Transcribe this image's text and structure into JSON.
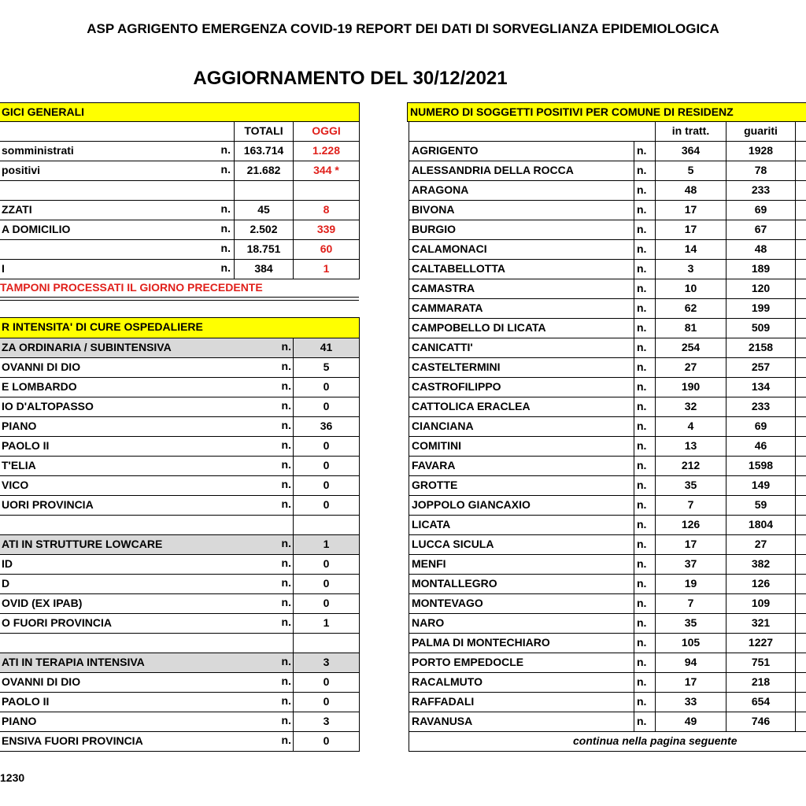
{
  "header": {
    "title": "ASP AGRIGENTO   EMERGENZA COVID-19   REPORT DEI DATI DI SORVEGLIANZA EPIDEMIOLOGICA",
    "subtitle": "AGGIORNAMENTO DEL 30/12/2021"
  },
  "general": {
    "title": "GICI GENERALI",
    "columns": [
      "TOTALI",
      "OGGI"
    ],
    "rows": [
      {
        "label": "somministrati",
        "unit": "n.",
        "total": "163.714",
        "today": "1.228"
      },
      {
        "label": "positivi",
        "unit": "n.",
        "total": "21.682",
        "today": "344 *"
      },
      null,
      {
        "label": "ZZATI",
        "unit": "n.",
        "total": "45",
        "today": "8"
      },
      {
        "label": "A DOMICILIO",
        "unit": "n.",
        "total": "2.502",
        "today": "339"
      },
      {
        "unit": "n.",
        "total": "18.751",
        "today": "60"
      },
      {
        "label": "I",
        "unit": "n.",
        "total": "384",
        "today": "1"
      }
    ],
    "note": "TAMPONI PROCESSATI IL GIORNO PRECEDENTE"
  },
  "hospital": {
    "title": "R INTENSITA' DI CURE OSPEDALIERE",
    "sections": [
      {
        "label": "ZA ORDINARIA / SUBINTENSIVA",
        "unit": "n.",
        "value": "41",
        "items": [
          [
            "OVANNI DI DIO",
            "n.",
            "5"
          ],
          [
            "E LOMBARDO",
            "n.",
            "0"
          ],
          [
            "IO D'ALTOPASSO",
            "n.",
            "0"
          ],
          [
            "PIANO",
            "n.",
            "36"
          ],
          [
            "PAOLO II",
            "n.",
            "0"
          ],
          [
            "T'ELIA",
            "n.",
            "0"
          ],
          [
            "VICO",
            "n.",
            "0"
          ],
          [
            "UORI PROVINCIA",
            "n.",
            "0"
          ]
        ]
      },
      {
        "label": "ATI IN STRUTTURE LOWCARE",
        "unit": "n.",
        "value": "1",
        "items": [
          [
            "ID",
            "n.",
            "0"
          ],
          [
            "D",
            "n.",
            "0"
          ],
          [
            "OVID (EX IPAB)",
            "n.",
            "0"
          ],
          [
            "O FUORI PROVINCIA",
            "n.",
            "1"
          ]
        ]
      },
      {
        "label": "ATI IN TERAPIA INTENSIVA",
        "unit": "n.",
        "value": "3",
        "items": [
          [
            "OVANNI DI DIO",
            "n.",
            "0"
          ],
          [
            "PAOLO II",
            "n.",
            "0"
          ],
          [
            "PIANO",
            "n.",
            "3"
          ],
          [
            "ENSIVA FUORI PROVINCIA",
            "n.",
            "0"
          ]
        ]
      }
    ]
  },
  "communes": {
    "title": "NUMERO DI SOGGETTI POSITIVI PER COMUNE DI RESIDENZ",
    "columns": [
      "in tratt.",
      "guariti"
    ],
    "rows": [
      [
        "AGRIGENTO",
        "n.",
        "364",
        "1928"
      ],
      [
        "ALESSANDRIA DELLA ROCCA",
        "n.",
        "5",
        "78"
      ],
      [
        "ARAGONA",
        "n.",
        "48",
        "233"
      ],
      [
        "BIVONA",
        "n.",
        "17",
        "69"
      ],
      [
        "BURGIO",
        "n.",
        "17",
        "67"
      ],
      [
        "CALAMONACI",
        "n.",
        "14",
        "48"
      ],
      [
        "CALTABELLOTTA",
        "n.",
        "3",
        "189"
      ],
      [
        "CAMASTRA",
        "n.",
        "10",
        "120"
      ],
      [
        "CAMMARATA",
        "n.",
        "62",
        "199"
      ],
      [
        "CAMPOBELLO DI LICATA",
        "n.",
        "81",
        "509"
      ],
      [
        "CANICATTI'",
        "n.",
        "254",
        "2158"
      ],
      [
        "CASTELTERMINI",
        "n.",
        "27",
        "257"
      ],
      [
        "CASTROFILIPPO",
        "n.",
        "190",
        "134"
      ],
      [
        "CATTOLICA ERACLEA",
        "n.",
        "32",
        "233"
      ],
      [
        "CIANCIANA",
        "n.",
        "4",
        "69"
      ],
      [
        "COMITINI",
        "n.",
        "13",
        "46"
      ],
      [
        "FAVARA",
        "n.",
        "212",
        "1598"
      ],
      [
        "GROTTE",
        "n.",
        "35",
        "149"
      ],
      [
        "JOPPOLO GIANCAXIO",
        "n.",
        "7",
        "59"
      ],
      [
        "LICATA",
        "n.",
        "126",
        "1804"
      ],
      [
        "LUCCA SICULA",
        "n.",
        "17",
        "27"
      ],
      [
        "MENFI",
        "n.",
        "37",
        "382"
      ],
      [
        "MONTALLEGRO",
        "n.",
        "19",
        "126"
      ],
      [
        "MONTEVAGO",
        "n.",
        "7",
        "109"
      ],
      [
        "NARO",
        "n.",
        "35",
        "321"
      ],
      [
        "PALMA DI MONTECHIARO",
        "n.",
        "105",
        "1227"
      ],
      [
        "PORTO EMPEDOCLE",
        "n.",
        "94",
        "751"
      ],
      [
        "RACALMUTO",
        "n.",
        "17",
        "218"
      ],
      [
        "RAFFADALI",
        "n.",
        "33",
        "654"
      ],
      [
        "RAVANUSA",
        "n.",
        "49",
        "746"
      ]
    ],
    "footer": "continua nella pagina seguente"
  },
  "footer": {
    "code": "1230"
  }
}
